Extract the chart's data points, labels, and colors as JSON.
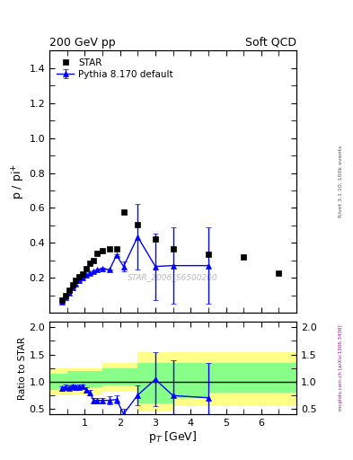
{
  "title_left": "200 GeV pp",
  "title_right": "Soft QCD",
  "ylabel_main": "p / pi$^{+}$",
  "ylabel_ratio": "Ratio to STAR",
  "xlabel": "p$_{T}$ [GeV]",
  "right_label_main": "Rivet 3.1.10, 100k events",
  "right_label_ratio": "mcplots.cern.ch [arXiv:1306.3436]",
  "watermark": "STAR_2006_S6500200",
  "star_x": [
    0.35,
    0.45,
    0.55,
    0.65,
    0.75,
    0.85,
    0.95,
    1.05,
    1.15,
    1.25,
    1.35,
    1.5,
    1.7,
    1.9,
    2.1,
    2.5,
    3.0,
    3.5,
    4.5,
    5.5,
    6.5
  ],
  "star_y": [
    0.075,
    0.1,
    0.13,
    0.16,
    0.185,
    0.205,
    0.22,
    0.255,
    0.285,
    0.3,
    0.34,
    0.355,
    0.365,
    0.365,
    0.575,
    0.505,
    0.42,
    0.365,
    0.335,
    0.32,
    0.225
  ],
  "pythia_x": [
    0.35,
    0.45,
    0.55,
    0.65,
    0.75,
    0.85,
    0.95,
    1.05,
    1.15,
    1.25,
    1.35,
    1.5,
    1.7,
    1.9,
    2.1,
    2.5,
    3.0,
    3.5,
    4.5
  ],
  "pythia_y": [
    0.065,
    0.09,
    0.115,
    0.145,
    0.165,
    0.185,
    0.2,
    0.215,
    0.225,
    0.235,
    0.245,
    0.255,
    0.245,
    0.33,
    0.265,
    0.435,
    0.265,
    0.27,
    0.27
  ],
  "pythia_yerr": [
    0.003,
    0.003,
    0.003,
    0.004,
    0.004,
    0.004,
    0.004,
    0.005,
    0.005,
    0.005,
    0.005,
    0.005,
    0.005,
    0.005,
    0.03,
    0.19,
    0.19,
    0.22,
    0.22
  ],
  "ratio_x": [
    0.35,
    0.45,
    0.55,
    0.65,
    0.75,
    0.85,
    0.95,
    1.05,
    1.15,
    1.25,
    1.35,
    1.5,
    1.7,
    1.9,
    2.1,
    2.5,
    3.0,
    3.5,
    4.5
  ],
  "ratio_y": [
    0.87,
    0.9,
    0.885,
    0.906,
    0.892,
    0.902,
    0.909,
    0.843,
    0.789,
    0.652,
    0.649,
    0.652,
    0.652,
    0.668,
    0.4,
    0.75,
    1.04,
    0.74,
    0.7
  ],
  "ratio_yerr": [
    0.04,
    0.04,
    0.04,
    0.04,
    0.04,
    0.04,
    0.04,
    0.05,
    0.05,
    0.05,
    0.05,
    0.05,
    0.07,
    0.07,
    0.09,
    0.18,
    0.5,
    0.65,
    0.65
  ],
  "ylim_main": [
    0.0,
    1.5
  ],
  "ylim_ratio": [
    0.4,
    2.1
  ],
  "xlim_main": [
    0.0,
    7.0
  ],
  "xlim_ratio": [
    0.0,
    7.0
  ],
  "star_color": "#000000",
  "pythia_color": "#0000ff",
  "yellow_color": "#ffff88",
  "green_color": "#88ff88",
  "bg_color": "#ffffff"
}
